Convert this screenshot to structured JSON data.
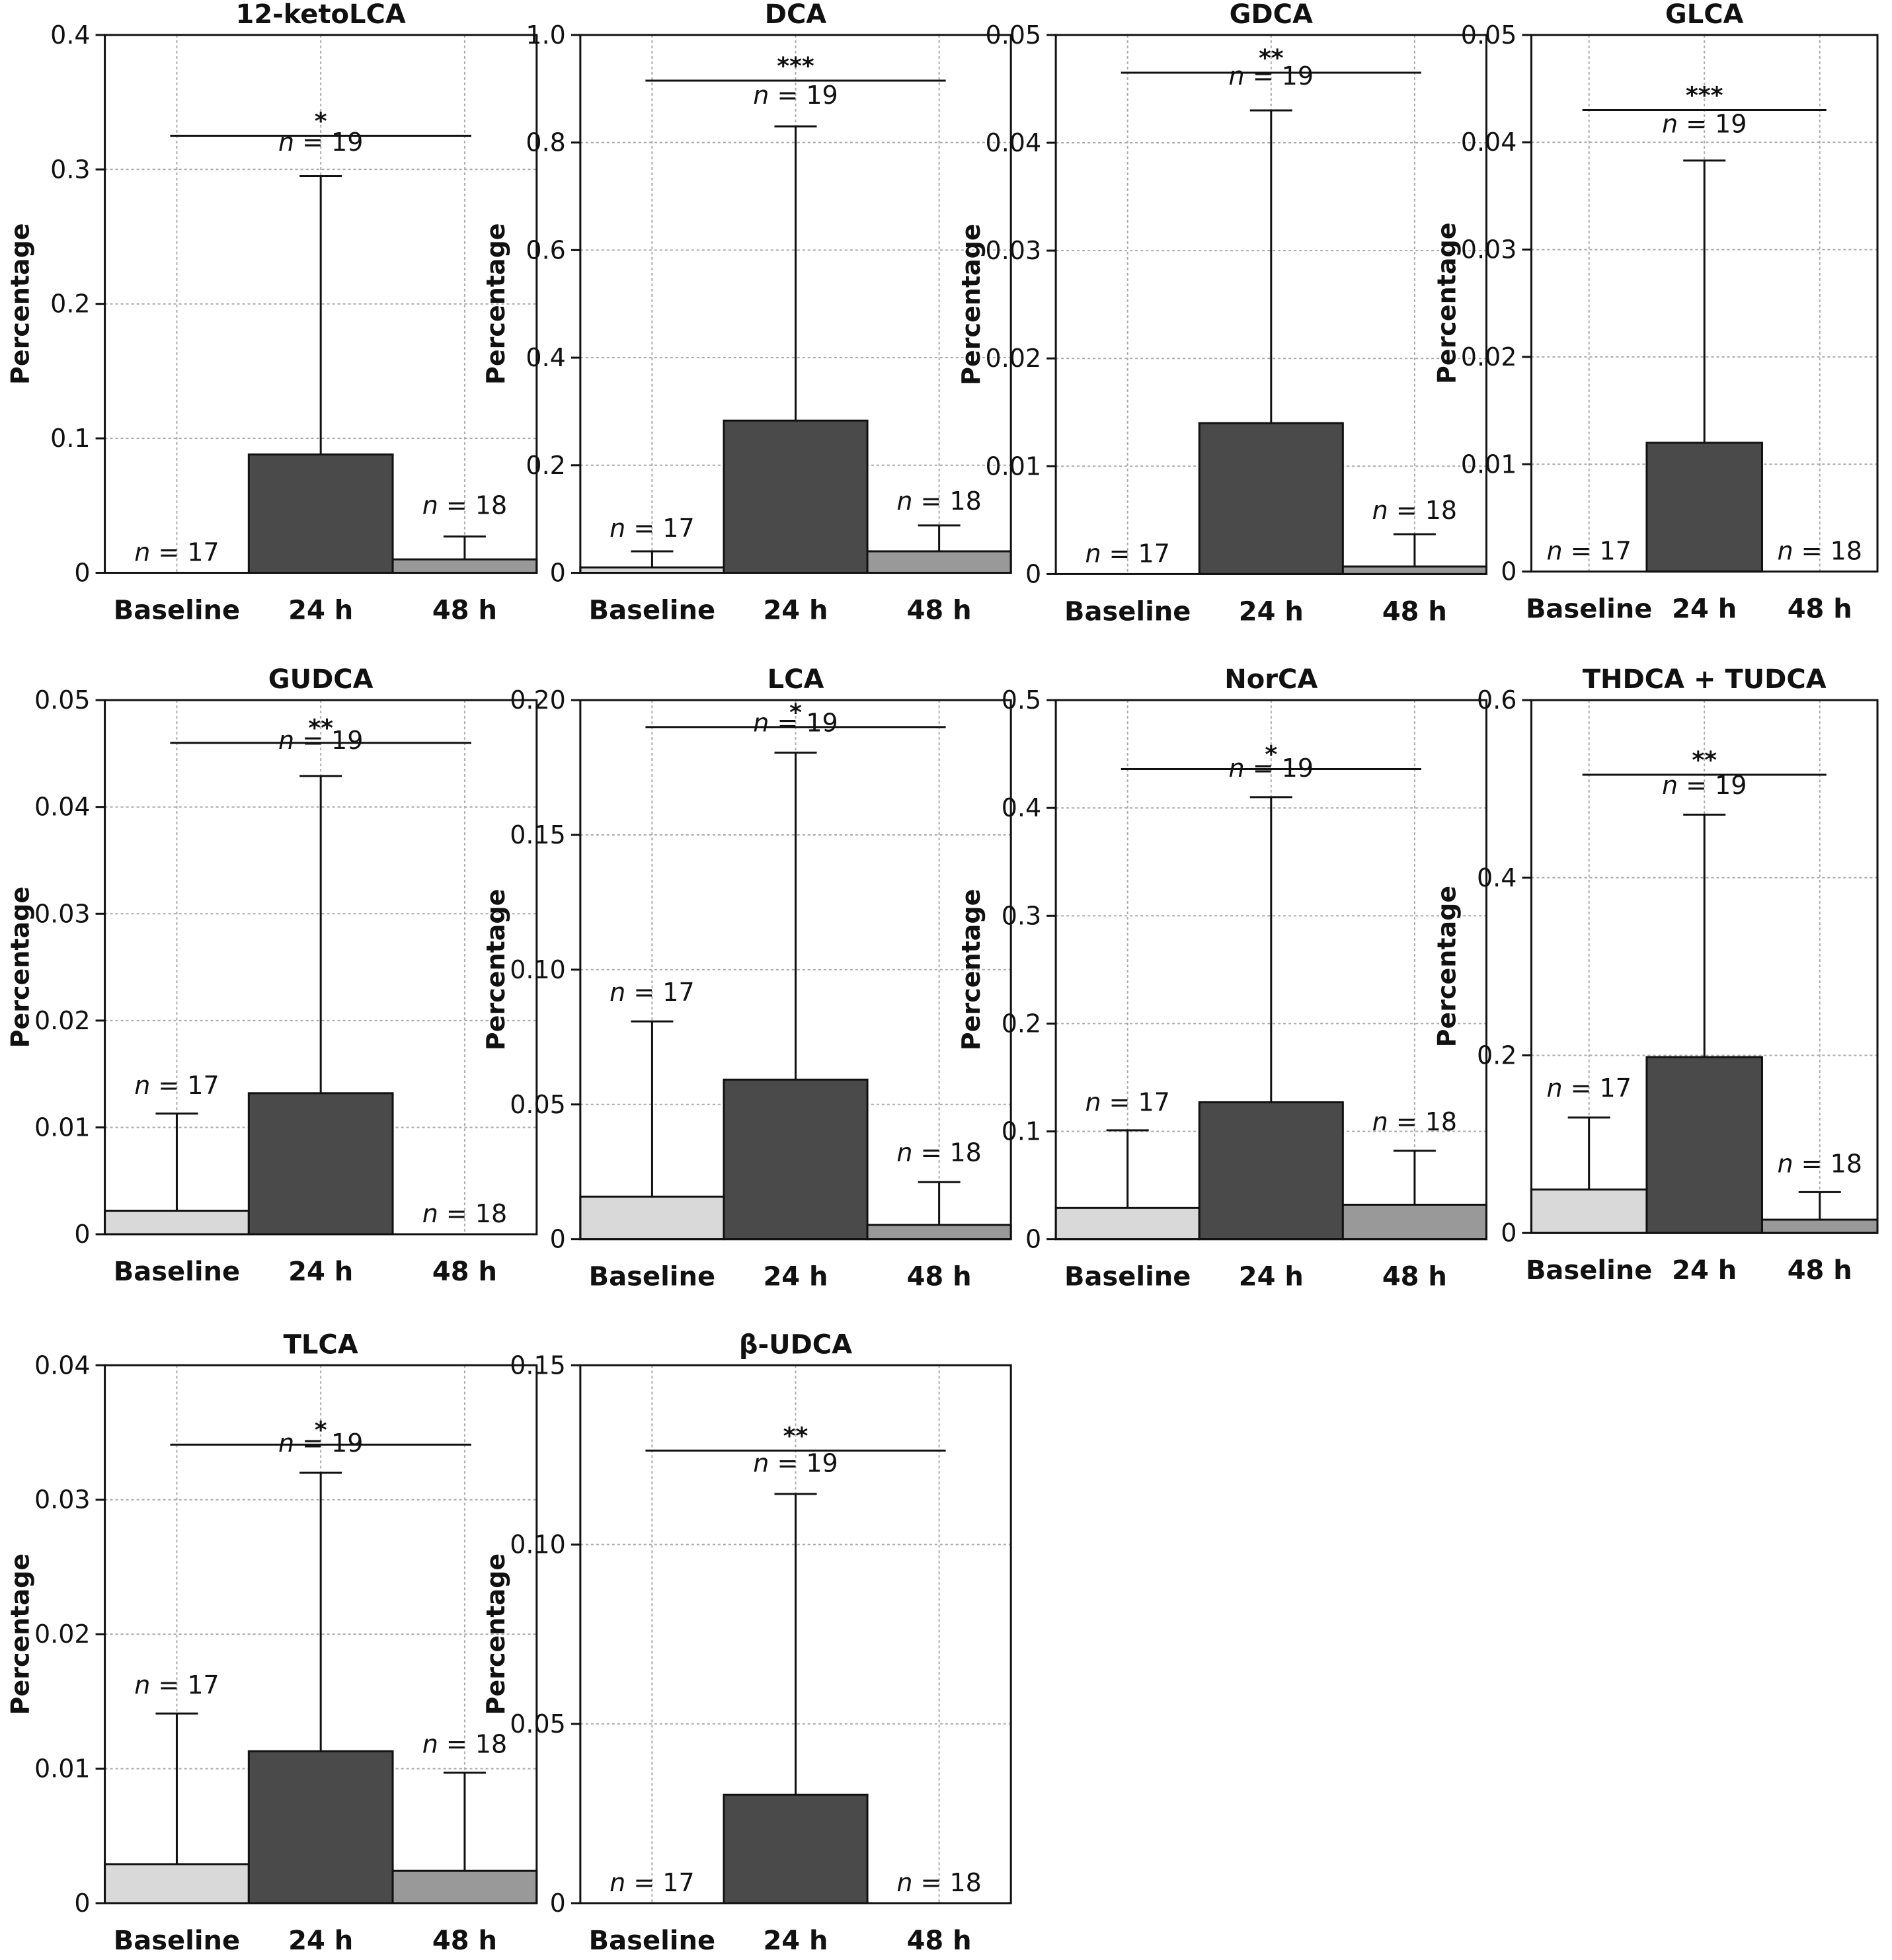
{
  "chart_data": [
    {
      "type": "bar",
      "title": "12-ketoLCA",
      "ylabel": "Percentage",
      "categories": [
        "Baseline",
        "24 h",
        "48 h"
      ],
      "ylim": [
        0,
        0.4
      ],
      "yticks": [
        0,
        0.1,
        0.2,
        0.3,
        0.4
      ],
      "ytick_labels": [
        "0",
        "0.1",
        "0.2",
        "0.3",
        "0.4"
      ],
      "values": [
        0,
        0.088,
        0.01
      ],
      "errors": [
        0,
        0.295,
        0.027
      ],
      "n_labels": [
        "n = 17",
        "n = 19",
        "n = 18"
      ],
      "n_y": [
        0.0,
        0.305,
        0.035
      ],
      "significance": "*",
      "sig_y": 0.325,
      "grid": true
    },
    {
      "type": "bar",
      "title": "DCA",
      "ylabel": "Percentage",
      "categories": [
        "Baseline",
        "24 h",
        "48 h"
      ],
      "ylim": [
        0,
        1.0
      ],
      "yticks": [
        0,
        0.2,
        0.4,
        0.6,
        0.8,
        1.0
      ],
      "ytick_labels": [
        "0",
        "0.2",
        "0.4",
        "0.6",
        "0.8",
        "1.0"
      ],
      "values": [
        0.01,
        0.283,
        0.04
      ],
      "errors": [
        0.04,
        0.83,
        0.088
      ],
      "n_labels": [
        "n = 17",
        "n = 19",
        "n = 18"
      ],
      "n_y": [
        0.045,
        0.85,
        0.095
      ],
      "significance": "***",
      "sig_y": 0.915,
      "grid": true
    },
    {
      "type": "bar",
      "title": "GDCA",
      "ylabel": "Percentage",
      "categories": [
        "Baseline",
        "24 h",
        "48 h"
      ],
      "ylim": [
        0,
        0.05
      ],
      "yticks": [
        0,
        0.01,
        0.02,
        0.03,
        0.04,
        0.05
      ],
      "ytick_labels": [
        "0",
        "0.01",
        "0.02",
        "0.03",
        "0.04",
        "0.05"
      ],
      "values": [
        0,
        0.014,
        0.0007
      ],
      "errors": [
        0,
        0.043,
        0.0037
      ],
      "n_labels": [
        "n = 17",
        "n = 19",
        "n = 18"
      ],
      "n_y": [
        0.0,
        0.0443,
        0.004
      ],
      "significance": "**",
      "sig_y": 0.0465,
      "grid": true
    },
    {
      "type": "bar",
      "title": "GLCA",
      "ylabel": "Percentage",
      "categories": [
        "Baseline",
        "24 h",
        "48 h"
      ],
      "ylim": [
        0,
        0.05
      ],
      "yticks": [
        0,
        0.01,
        0.02,
        0.03,
        0.04,
        0.05
      ],
      "ytick_labels": [
        "0",
        "0.01",
        "0.02",
        "0.03",
        "0.04",
        "0.05"
      ],
      "values": [
        0,
        0.012,
        0
      ],
      "errors": [
        0,
        0.0383,
        0
      ],
      "n_labels": [
        "n = 17",
        "n = 19",
        "n = 18"
      ],
      "n_y": [
        0.0,
        0.0398,
        0.0
      ],
      "significance": "***",
      "sig_y": 0.043,
      "grid": true
    },
    {
      "type": "bar",
      "title": "GUDCA",
      "ylabel": "Percentage",
      "categories": [
        "Baseline",
        "24 h",
        "48 h"
      ],
      "ylim": [
        0,
        0.05
      ],
      "yticks": [
        0,
        0.01,
        0.02,
        0.03,
        0.04,
        0.05
      ],
      "ytick_labels": [
        "0",
        "0.01",
        "0.02",
        "0.03",
        "0.04",
        "0.05"
      ],
      "values": [
        0.0022,
        0.0132,
        0
      ],
      "errors": [
        0.0113,
        0.0429,
        0
      ],
      "n_labels": [
        "n = 17",
        "n = 19",
        "n = 18"
      ],
      "n_y": [
        0.012,
        0.0443,
        0.0
      ],
      "significance": "**",
      "sig_y": 0.046,
      "grid": true
    },
    {
      "type": "bar",
      "title": "LCA",
      "ylabel": "Percentage",
      "categories": [
        "Baseline",
        "24 h",
        "48 h"
      ],
      "ylim": [
        0,
        0.2
      ],
      "yticks": [
        0,
        0.05,
        0.1,
        0.15,
        0.2
      ],
      "ytick_labels": [
        "0",
        "0.05",
        "0.10",
        "0.15",
        "0.20"
      ],
      "values": [
        0.0158,
        0.0592,
        0.0053
      ],
      "errors": [
        0.0808,
        0.1805,
        0.0212
      ],
      "n_labels": [
        "n = 17",
        "n = 19",
        "n = 18"
      ],
      "n_y": [
        0.084,
        0.184,
        0.0245
      ],
      "significance": "*",
      "sig_y": 0.19,
      "grid": true
    },
    {
      "type": "bar",
      "title": "NorCA",
      "ylabel": "Percentage",
      "categories": [
        "Baseline",
        "24 h",
        "48 h"
      ],
      "ylim": [
        0,
        0.5
      ],
      "yticks": [
        0,
        0.1,
        0.2,
        0.3,
        0.4,
        0.5
      ],
      "ytick_labels": [
        "0",
        "0.1",
        "0.2",
        "0.3",
        "0.4",
        "0.5"
      ],
      "values": [
        0.029,
        0.127,
        0.032
      ],
      "errors": [
        0.101,
        0.41,
        0.082
      ],
      "n_labels": [
        "n = 17",
        "n = 19",
        "n = 18"
      ],
      "n_y": [
        0.108,
        0.418,
        0.09
      ],
      "significance": "*",
      "sig_y": 0.436,
      "grid": true
    },
    {
      "type": "bar",
      "title": "THDCA + TUDCA",
      "ylabel": "Percentage",
      "categories": [
        "Baseline",
        "24 h",
        "48 h"
      ],
      "ylim": [
        0,
        0.6
      ],
      "yticks": [
        0,
        0.2,
        0.4,
        0.6
      ],
      "ytick_labels": [
        "0",
        "0.2",
        "0.4",
        "0.6"
      ],
      "values": [
        0.049,
        0.198,
        0.015
      ],
      "errors": [
        0.13,
        0.471,
        0.046
      ],
      "n_labels": [
        "n = 17",
        "n = 19",
        "n = 18"
      ],
      "n_y": [
        0.14,
        0.481,
        0.055
      ],
      "significance": "**",
      "sig_y": 0.516,
      "grid": true
    },
    {
      "type": "bar",
      "title": "TLCA",
      "ylabel": "Percentage",
      "categories": [
        "Baseline",
        "24 h",
        "48 h"
      ],
      "ylim": [
        0,
        0.04
      ],
      "yticks": [
        0,
        0.01,
        0.02,
        0.03,
        0.04
      ],
      "ytick_labels": [
        "0",
        "0.01",
        "0.02",
        "0.03",
        "0.04"
      ],
      "values": [
        0.0029,
        0.0113,
        0.0024
      ],
      "errors": [
        0.0141,
        0.032,
        0.0097
      ],
      "n_labels": [
        "n = 17",
        "n = 19",
        "n = 18"
      ],
      "n_y": [
        0.0147,
        0.0327,
        0.0103
      ],
      "significance": "*",
      "sig_y": 0.0341,
      "grid": true
    },
    {
      "type": "bar",
      "title": "β-UDCA",
      "ylabel": "Percentage",
      "categories": [
        "Baseline",
        "24 h",
        "48 h"
      ],
      "ylim": [
        0,
        0.15
      ],
      "yticks": [
        0,
        0.05,
        0.1,
        0.15
      ],
      "ytick_labels": [
        "0",
        "0.05",
        "0.10",
        "0.15"
      ],
      "values": [
        0,
        0.0302,
        0
      ],
      "errors": [
        0,
        0.1141,
        0
      ],
      "n_labels": [
        "n = 17",
        "n = 19",
        "n = 18"
      ],
      "n_y": [
        0.0,
        0.117,
        0.0
      ],
      "significance": "**",
      "sig_y": 0.1262,
      "grid": true
    }
  ],
  "bar_colors": [
    "#d9d9d9",
    "#4a4a4a",
    "#999999"
  ],
  "grid_color": "#aaaaaa"
}
